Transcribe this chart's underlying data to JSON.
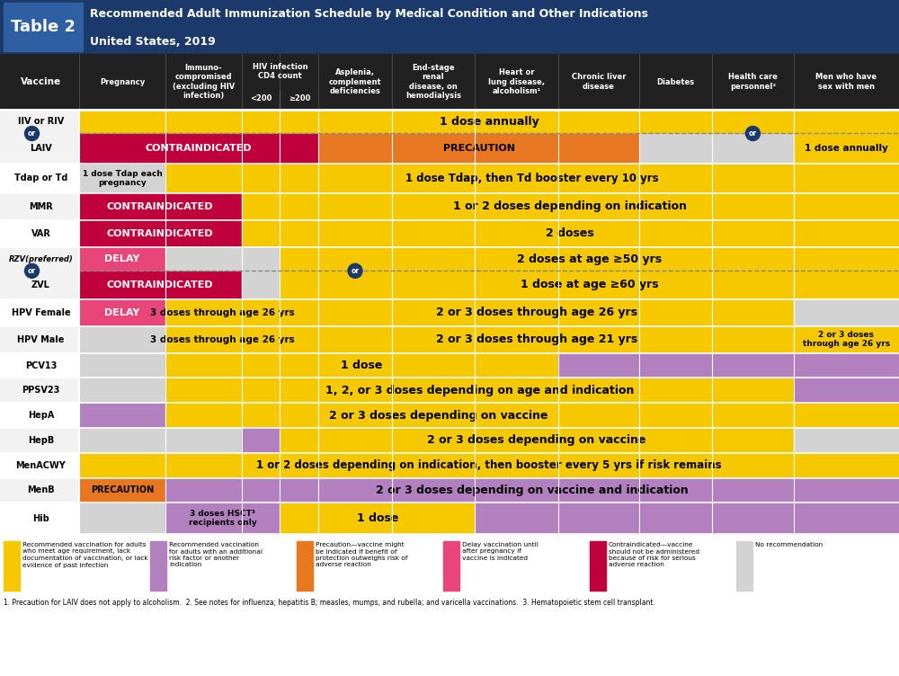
{
  "title_line1": "Recommended Adult Immunization Schedule by Medical Condition and Other Indications",
  "title_line2": "United States, 2019",
  "colors": {
    "yellow": "#F5C800",
    "purple": "#B280BE",
    "orange": "#E87722",
    "pink_delay": "#E8457A",
    "red_contra": "#C0003C",
    "gray_light": "#D3D3D3",
    "header_dark": "#212121",
    "blue_dark": "#1B3A6B",
    "white": "#FFFFFF",
    "table2_blue": "#2E5FA3",
    "row_alt": "#F2F2F2",
    "row_norm": "#FFFFFF"
  },
  "col_props": [
    8.5,
    7.5,
    3.8,
    3.8,
    7.2,
    8.2,
    8.2,
    8.0,
    7.2,
    8.0,
    10.4
  ],
  "col_header_texts": [
    "Pregnancy",
    "Immuno-\ncompromised\n(excluding HIV\ninfection)",
    "<200",
    "≥200",
    "Asplenia,\ncomplement\ndeficiencies",
    "End-stage\nrenal\ndisease, on\nhemodialysis",
    "Heart or\nlung disease,\nalcoholism¹",
    "Chronic liver\ndisease",
    "Diabetes",
    "Health care\npersonnel²",
    "Men who have\nsex with men"
  ],
  "hiv_header": "HIV infection\nCD4 count",
  "rows": [
    {
      "vaccine": "IIV or RIV\n\nor\nLAIV",
      "special": "iiv_laiv",
      "top_cells": [
        {
          "span": 11,
          "color": "yellow",
          "text": "1 dose annually",
          "tsize": 9
        }
      ],
      "bot_cells": [
        {
          "span": 4,
          "color": "red_contra",
          "text": "CONTRAINDICATED",
          "tsize": 8
        },
        {
          "span": 4,
          "color": "orange",
          "text": "PRECAUTION",
          "tsize": 8
        },
        {
          "span": 2,
          "color": "gray_light",
          "text": "",
          "tsize": 8
        },
        {
          "span": 1,
          "color": "yellow",
          "text": "1 dose annually",
          "tsize": 7.5
        }
      ]
    },
    {
      "vaccine": "Tdap or Td",
      "special": null,
      "cells": [
        {
          "span": 1,
          "color": "gray_light",
          "text": "1 dose Tdap each\npregnancy",
          "tsize": 6.5
        },
        {
          "span": 10,
          "color": "yellow",
          "text": "1 dose Tdap, then Td booster every 10 yrs",
          "tsize": 8.5
        }
      ]
    },
    {
      "vaccine": "MMR",
      "special": null,
      "cells": [
        {
          "span": 2,
          "color": "red_contra",
          "text": "CONTRAINDICATED",
          "tsize": 8
        },
        {
          "span": 9,
          "color": "yellow",
          "text": "1 or 2 doses depending on indication",
          "tsize": 9
        }
      ]
    },
    {
      "vaccine": "VAR",
      "special": null,
      "cells": [
        {
          "span": 2,
          "color": "red_contra",
          "text": "CONTRAINDICATED",
          "tsize": 8
        },
        {
          "span": 9,
          "color": "yellow",
          "text": "2 doses",
          "tsize": 9
        }
      ]
    },
    {
      "vaccine": "RZV(preferred)\nor\nZVL",
      "special": "rzv_row",
      "top_cells": [
        {
          "span": 1,
          "color": "pink_delay",
          "text": "DELAY",
          "tsize": 8
        },
        {
          "span": 2,
          "color": "gray_light",
          "text": "",
          "tsize": 8
        },
        {
          "span": 8,
          "color": "yellow",
          "text": "2 doses at age ≥50 yrs",
          "tsize": 9
        }
      ],
      "bot_cells": [
        {
          "span": 2,
          "color": "red_contra",
          "text": "CONTRAINDICATED",
          "tsize": 8
        },
        {
          "span": 1,
          "color": "gray_light",
          "text": "",
          "tsize": 8
        },
        {
          "span": 8,
          "color": "yellow",
          "text": "1 dose at age ≥60 yrs",
          "tsize": 9
        }
      ]
    },
    {
      "vaccine": "HPV Female",
      "special": null,
      "cells": [
        {
          "span": 1,
          "color": "pink_delay",
          "text": "DELAY",
          "tsize": 8
        },
        {
          "span": 2,
          "color": "yellow",
          "text": "3 doses through age 26 yrs",
          "tsize": 7.5
        },
        {
          "span": 7,
          "color": "yellow",
          "text": "2 or 3 doses through age 26 yrs",
          "tsize": 9
        },
        {
          "span": 1,
          "color": "gray_light",
          "text": "",
          "tsize": 8
        }
      ]
    },
    {
      "vaccine": "HPV Male",
      "special": null,
      "cells": [
        {
          "span": 1,
          "color": "gray_light",
          "text": "",
          "tsize": 8
        },
        {
          "span": 2,
          "color": "yellow",
          "text": "3 doses through age 26 yrs",
          "tsize": 7.5
        },
        {
          "span": 7,
          "color": "yellow",
          "text": "2 or 3 doses through age 21 yrs",
          "tsize": 9
        },
        {
          "span": 1,
          "color": "yellow",
          "text": "2 or 3 doses\nthrough age 26 yrs",
          "tsize": 6.5
        }
      ]
    },
    {
      "vaccine": "PCV13",
      "special": null,
      "cells": [
        {
          "span": 1,
          "color": "gray_light",
          "text": "",
          "tsize": 8
        },
        {
          "span": 6,
          "color": "yellow",
          "text": "1 dose",
          "tsize": 9
        },
        {
          "span": 4,
          "color": "purple",
          "text": "",
          "tsize": 8
        }
      ]
    },
    {
      "vaccine": "PPSV23",
      "special": null,
      "cells": [
        {
          "span": 1,
          "color": "gray_light",
          "text": "",
          "tsize": 8
        },
        {
          "span": 9,
          "color": "yellow",
          "text": "1, 2, or 3 doses depending on age and indication",
          "tsize": 9
        },
        {
          "span": 1,
          "color": "purple",
          "text": "",
          "tsize": 8
        }
      ]
    },
    {
      "vaccine": "HepA",
      "special": null,
      "cells": [
        {
          "span": 1,
          "color": "purple",
          "text": "",
          "tsize": 8
        },
        {
          "span": 8,
          "color": "yellow",
          "text": "2 or 3 doses depending on vaccine",
          "tsize": 9
        },
        {
          "span": 2,
          "color": "yellow",
          "text": "",
          "tsize": 8
        }
      ]
    },
    {
      "vaccine": "HepB",
      "special": null,
      "cells": [
        {
          "span": 2,
          "color": "gray_light",
          "text": "",
          "tsize": 8
        },
        {
          "span": 1,
          "color": "purple",
          "text": "",
          "tsize": 8
        },
        {
          "span": 7,
          "color": "yellow",
          "text": "2 or 3 doses depending on vaccine",
          "tsize": 9
        },
        {
          "span": 1,
          "color": "gray_light",
          "text": "",
          "tsize": 8
        }
      ]
    },
    {
      "vaccine": "MenACWY",
      "special": null,
      "cells": [
        {
          "span": 11,
          "color": "yellow",
          "text": "1 or 2 doses depending on indication, then booster every 5 yrs if risk remains",
          "tsize": 8.5
        }
      ]
    },
    {
      "vaccine": "MenB",
      "special": null,
      "cells": [
        {
          "span": 1,
          "color": "orange",
          "text": "PRECAUTION",
          "tsize": 7
        },
        {
          "span": 10,
          "color": "purple",
          "text": "2 or 3 doses depending on vaccine and indication",
          "tsize": 9
        }
      ]
    },
    {
      "vaccine": "Hib",
      "special": null,
      "cells": [
        {
          "span": 1,
          "color": "gray_light",
          "text": "",
          "tsize": 8
        },
        {
          "span": 2,
          "color": "purple",
          "text": "3 doses HSCT³\nrecipients only",
          "tsize": 6.5
        },
        {
          "span": 3,
          "color": "yellow",
          "text": "1 dose",
          "tsize": 9
        },
        {
          "span": 5,
          "color": "purple",
          "text": "",
          "tsize": 8
        }
      ]
    }
  ],
  "legend_colors": [
    "yellow",
    "purple",
    "orange",
    "pink_delay",
    "red_contra",
    "gray_light"
  ],
  "legend_texts": [
    "Recommended vaccination for adults\nwho meet age requirement, lack\ndocumentation of vaccination, or lack\nevidence of past infection",
    "Recommended vaccination\nfor adults with an additional\nrisk factor or another\nindication",
    "Precaution—vaccine might\nbe indicated if benefit of\nprotection outweighs risk of\nadverse reaction",
    "Delay vaccination until\nafter pregnancy if\nvaccine is indicated",
    "Contraindicated—vaccine\nshould not be administered\nbecause of risk for serious\nadverse reaction",
    "No recommendation"
  ],
  "footnotes": "1. Precaution for LAIV does not apply to alcoholism.  2. See notes for influenza; hepatitis B; measles, mumps, and rubella; and varicella vaccinations.  3. Hematopoietic stem cell transplant."
}
